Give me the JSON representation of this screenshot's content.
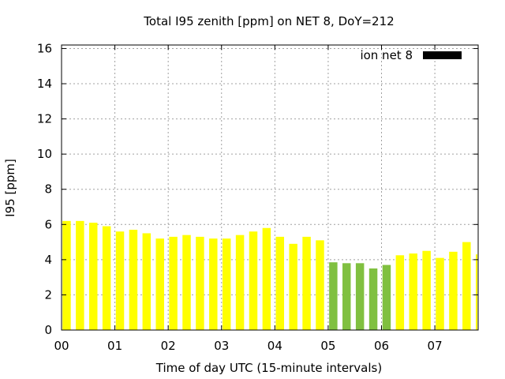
{
  "chart_data": {
    "type": "bar",
    "title": "Total I95 zenith [ppm] on NET 8, DoY=212",
    "xlabel": "Time of day UTC (15-minute intervals)",
    "ylabel": "I95 [ppm]",
    "ylim": [
      0,
      16.2
    ],
    "yticks": [
      0,
      2,
      4,
      6,
      8,
      10,
      12,
      14,
      16
    ],
    "xlim": [
      0,
      31
    ],
    "xticks": [
      {
        "label": "00",
        "x": 0
      },
      {
        "label": "01",
        "x": 4
      },
      {
        "label": "02",
        "x": 8
      },
      {
        "label": "03",
        "x": 12
      },
      {
        "label": "04",
        "x": 16
      },
      {
        "label": "05",
        "x": 20
      },
      {
        "label": "06",
        "x": 24
      },
      {
        "label": "07",
        "x": 28
      }
    ],
    "grid": true,
    "legend": {
      "position": "top-right",
      "entries": [
        {
          "name": "ion net 8",
          "color": "#000000"
        }
      ]
    },
    "colors": {
      "normal": "#ffff00",
      "low": "#80c040"
    },
    "x": [
      0,
      1,
      2,
      3,
      4,
      5,
      6,
      7,
      8,
      9,
      10,
      11,
      12,
      13,
      14,
      15,
      16,
      17,
      18,
      19,
      20,
      21,
      22,
      23,
      24,
      25,
      26,
      27,
      28,
      29,
      30,
      31
    ],
    "values": [
      6.2,
      6.2,
      6.1,
      5.9,
      5.6,
      5.7,
      5.5,
      5.2,
      5.3,
      5.4,
      5.3,
      5.2,
      5.2,
      5.4,
      5.6,
      5.8,
      5.3,
      4.9,
      5.3,
      5.1,
      3.85,
      3.8,
      3.8,
      3.5,
      3.7,
      4.25,
      4.35,
      4.5,
      4.1,
      4.45,
      5.0,
      4.3
    ],
    "bar_colors": [
      "normal",
      "normal",
      "normal",
      "normal",
      "normal",
      "normal",
      "normal",
      "normal",
      "normal",
      "normal",
      "normal",
      "normal",
      "normal",
      "normal",
      "normal",
      "normal",
      "normal",
      "normal",
      "normal",
      "normal",
      "low",
      "low",
      "low",
      "low",
      "low",
      "normal",
      "normal",
      "normal",
      "normal",
      "normal",
      "normal",
      "normal"
    ]
  }
}
